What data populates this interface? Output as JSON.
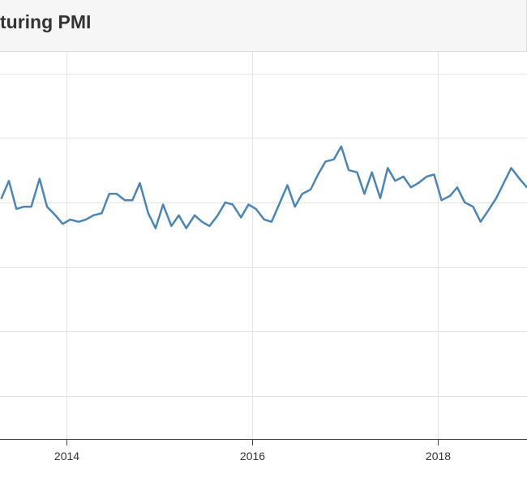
{
  "header": {
    "title": "turing PMI"
  },
  "chart_data": {
    "type": "line",
    "title": "turing PMI",
    "xlabel": "",
    "ylabel": "",
    "x_tick_labels": [
      "2014",
      "2016",
      "2018"
    ],
    "x_tick_values": [
      2014,
      2016,
      2018
    ],
    "xlim": [
      2013.3,
      2019.0
    ],
    "ylim": [
      40,
      58
    ],
    "y_gridlines": [
      42,
      45,
      48,
      51,
      54,
      57
    ],
    "grid": true,
    "colors": {
      "line": "#4a85b8",
      "grid": "#e3e3e3",
      "axis": "#444444"
    },
    "series": [
      {
        "x": [
          2013.3,
          2013.38,
          2013.46,
          2013.54,
          2013.62,
          2013.71,
          2013.79,
          2013.88,
          2013.96,
          2014.04,
          2014.13,
          2014.21,
          2014.29,
          2014.38,
          2014.46,
          2014.54,
          2014.63,
          2014.71,
          2014.79,
          2014.88,
          2014.96,
          2015.04,
          2015.13,
          2015.21,
          2015.29,
          2015.38,
          2015.46,
          2015.54,
          2015.63,
          2015.71,
          2015.79,
          2015.88,
          2015.96,
          2016.04,
          2016.13,
          2016.21,
          2016.29,
          2016.38,
          2016.46,
          2016.54,
          2016.63,
          2016.71,
          2016.79,
          2016.88,
          2016.96,
          2017.04,
          2017.13,
          2017.21,
          2017.29,
          2017.38,
          2017.46,
          2017.54,
          2017.63,
          2017.71,
          2017.79,
          2017.88,
          2017.96,
          2018.04,
          2018.13,
          2018.21,
          2018.29,
          2018.38,
          2018.46,
          2018.54,
          2018.63,
          2018.71,
          2018.79,
          2018.88,
          2018.96,
          2019.0
        ],
        "y": [
          51.2,
          52.0,
          50.7,
          50.8,
          50.8,
          52.1,
          50.8,
          50.4,
          50.0,
          50.2,
          50.1,
          50.2,
          50.4,
          50.5,
          51.4,
          51.4,
          51.1,
          51.1,
          51.9,
          50.5,
          49.8,
          50.9,
          49.9,
          50.4,
          49.8,
          50.4,
          50.1,
          49.9,
          50.4,
          51.0,
          50.9,
          50.3,
          50.9,
          50.7,
          50.2,
          50.1,
          50.9,
          51.8,
          50.8,
          51.4,
          51.6,
          52.3,
          52.9,
          53.0,
          53.6,
          52.5,
          52.4,
          51.4,
          52.4,
          51.2,
          52.6,
          52.0,
          52.2,
          51.7,
          51.9,
          52.2,
          52.3,
          51.1,
          51.3,
          51.7,
          51.0,
          50.8,
          50.1,
          50.6,
          51.2,
          51.9,
          52.6,
          52.1,
          51.7,
          51.9
        ]
      }
    ]
  }
}
